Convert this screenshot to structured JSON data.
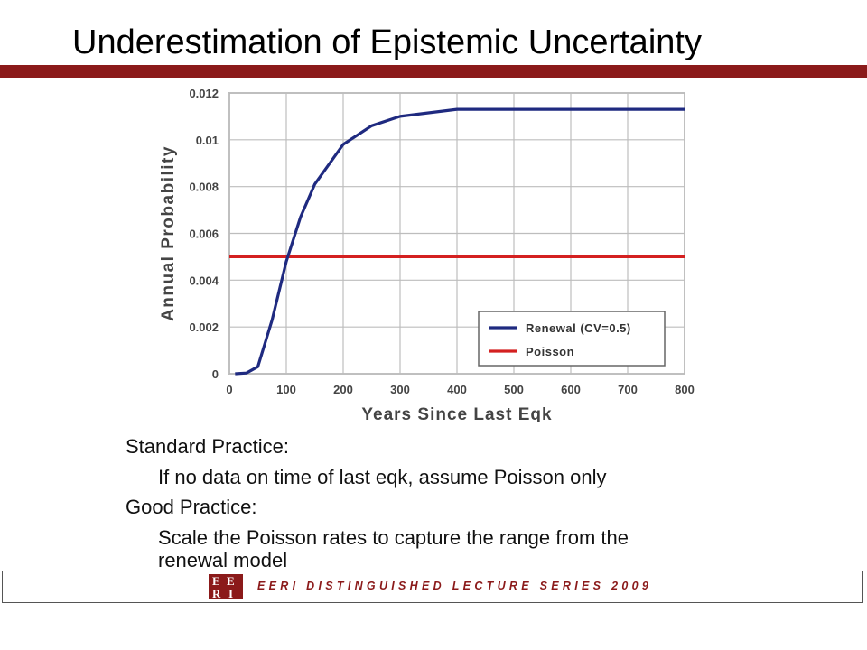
{
  "slide": {
    "title": "Underestimation of Epistemic Uncertainty",
    "accent_color": "#8b1a1a",
    "bullets": [
      {
        "level": 1,
        "text": "Standard Practice:"
      },
      {
        "level": 2,
        "text": "If no data on time of last eqk, assume Poisson only"
      },
      {
        "level": 1,
        "text": "Good Practice:"
      },
      {
        "level": 2,
        "text": "Scale the Poisson rates to capture the range from the"
      },
      {
        "level": 2,
        "text": "renewal model"
      }
    ]
  },
  "footer": {
    "text": "EERI DISTINGUISHED LECTURE SERIES 2009",
    "logo_text": "EERI",
    "color": "#8b1a1a"
  },
  "chart_data": {
    "type": "line",
    "title": "",
    "xlabel": "Years Since Last Eqk",
    "ylabel": "Annual Probability",
    "xlim": [
      0,
      800
    ],
    "ylim": [
      0,
      0.012
    ],
    "xticks": [
      0,
      100,
      200,
      300,
      400,
      500,
      600,
      700,
      800
    ],
    "yticks": [
      0,
      0.002,
      0.004,
      0.006,
      0.008,
      0.01,
      0.012
    ],
    "ytick_labels": [
      "0",
      "0.002",
      "0.004",
      "0.006",
      "0.008",
      "0.01",
      "0.012"
    ],
    "grid": true,
    "legend_position": "bottom-right",
    "series": [
      {
        "name": "Renewal (CV=0.5)",
        "color": "#1f2a80",
        "x": [
          10,
          30,
          50,
          75,
          100,
          125,
          150,
          200,
          250,
          300,
          400,
          500,
          600,
          700,
          800
        ],
        "y": [
          0,
          3e-05,
          0.0003,
          0.0023,
          0.0048,
          0.0067,
          0.0081,
          0.0098,
          0.0106,
          0.011,
          0.0113,
          0.0113,
          0.0113,
          0.0113,
          0.0113
        ]
      },
      {
        "name": "Poisson",
        "color": "#d42020",
        "x": [
          0,
          800
        ],
        "y": [
          0.005,
          0.005
        ]
      }
    ]
  }
}
